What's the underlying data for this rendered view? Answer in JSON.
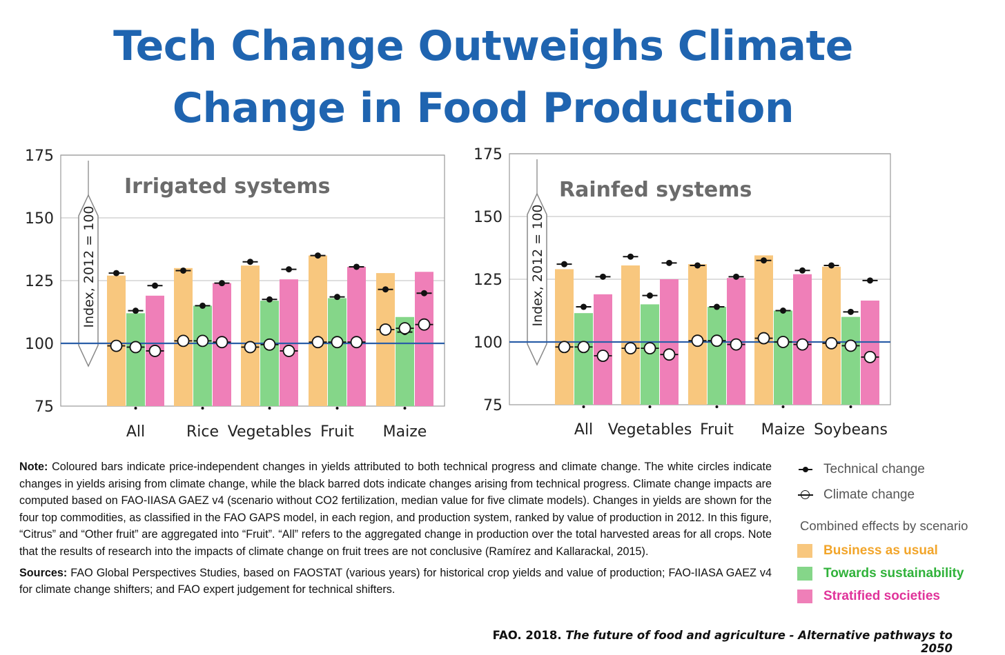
{
  "title": {
    "line1": "Tech Change Outweighs Climate",
    "line2": "Change in Food Production"
  },
  "colors": {
    "title": "#1f64b0",
    "business_as_usual": "#f8c77e",
    "towards_sustainability": "#85d689",
    "stratified_societies": "#ef7fb8",
    "baseline": "#2a5ea8",
    "legend_bau_text": "#f2a52a",
    "legend_ts_text": "#30b23a",
    "legend_ss_text": "#e0339a"
  },
  "chart_data": [
    {
      "type": "bar",
      "title": "Irrigated systems",
      "ylabel": "Index, 2012 = 100",
      "ylim": [
        75,
        175
      ],
      "yticks": [
        75,
        100,
        125,
        150,
        175
      ],
      "baseline": 100,
      "grid": true,
      "categories": [
        "All",
        "Rice",
        "Vegetables",
        "Fruit",
        "Maize"
      ],
      "series": [
        {
          "name": "Business as usual",
          "values": [
            127,
            130,
            131,
            135,
            128
          ],
          "technical": [
            128,
            129,
            132.5,
            135,
            121.5
          ],
          "climate": [
            99,
            101,
            98.5,
            100.5,
            105.5
          ]
        },
        {
          "name": "Towards sustainability",
          "values": [
            112,
            115,
            117,
            118,
            110.5
          ],
          "technical": [
            113,
            115,
            117.5,
            118.5,
            104.5
          ],
          "climate": [
            98.5,
            101,
            99.5,
            100.5,
            106
          ]
        },
        {
          "name": "Stratified societies",
          "values": [
            119,
            124,
            125.5,
            130.5,
            128.5
          ],
          "technical": [
            123,
            124,
            129.5,
            130.5,
            120
          ],
          "climate": [
            97,
            100.5,
            97,
            100.5,
            107.5
          ]
        }
      ]
    },
    {
      "type": "bar",
      "title": "Rainfed systems",
      "ylabel": "Index, 2012 = 100",
      "ylim": [
        75,
        175
      ],
      "yticks": [
        75,
        100,
        125,
        150,
        175
      ],
      "baseline": 100,
      "grid": true,
      "categories": [
        "All",
        "Vegetables",
        "Fruit",
        "Maize",
        "Soybeans"
      ],
      "series": [
        {
          "name": "Business as usual",
          "values": [
            129,
            130.5,
            131,
            134.5,
            130
          ],
          "technical": [
            131,
            134,
            130.5,
            132.5,
            130.5
          ],
          "climate": [
            98,
            97.5,
            100.5,
            101.5,
            99.5
          ]
        },
        {
          "name": "Towards sustainability",
          "values": [
            111.5,
            115,
            114,
            112.5,
            110
          ],
          "technical": [
            114,
            118.5,
            114,
            112.5,
            112
          ],
          "climate": [
            98,
            97.5,
            100.5,
            100,
            98.5
          ]
        },
        {
          "name": "Stratified societies",
          "values": [
            119,
            125,
            125.5,
            127,
            116.5
          ],
          "technical": [
            126,
            131.5,
            126,
            128.5,
            124.5
          ],
          "climate": [
            94.5,
            95,
            99,
            99,
            94
          ]
        }
      ]
    }
  ],
  "note": {
    "label": "Note:",
    "text": "Coloured bars indicate price-independent changes in yields attributed to both technical progress and climate change. The white circles indicate changes in yields arising from climate change, while the black barred dots indicate changes arising from technical progress. Climate change impacts are computed based on FAO-IIASA GAEZ v4 (scenario without CO2 fertilization, median value for five climate models). Changes in yields are shown for the four top commodities, as classified in the FAO GAPS model, in each region, and production system, ranked by value of production in 2012. In this figure, “Citrus” and “Other fruit” are aggregated into “Fruit”. “All” refers to the aggregated change in production over the total harvested areas for all crops. Note that the results of research into the impacts of climate change on fruit trees are not conclusive (Ramírez and Kallarackal, 2015)."
  },
  "sources": {
    "label": "Sources:",
    "text": "FAO Global Perspectives Studies, based on FAOSTAT (various years) for historical crop yields and value of production; FAO-IIASA GAEZ v4 for climate change shifters; and FAO expert judgement for technical shifters."
  },
  "legend": {
    "technical": "Technical change",
    "climate": "Climate change",
    "combined_heading": "Combined effects by scenario",
    "bau": "Business as usual",
    "ts": "Towards sustainability",
    "ss": "Stratified societies"
  },
  "credit": {
    "prefix": "FAO. 2018.",
    "title": "The future of food and agriculture - Alternative pathways to 2050"
  }
}
